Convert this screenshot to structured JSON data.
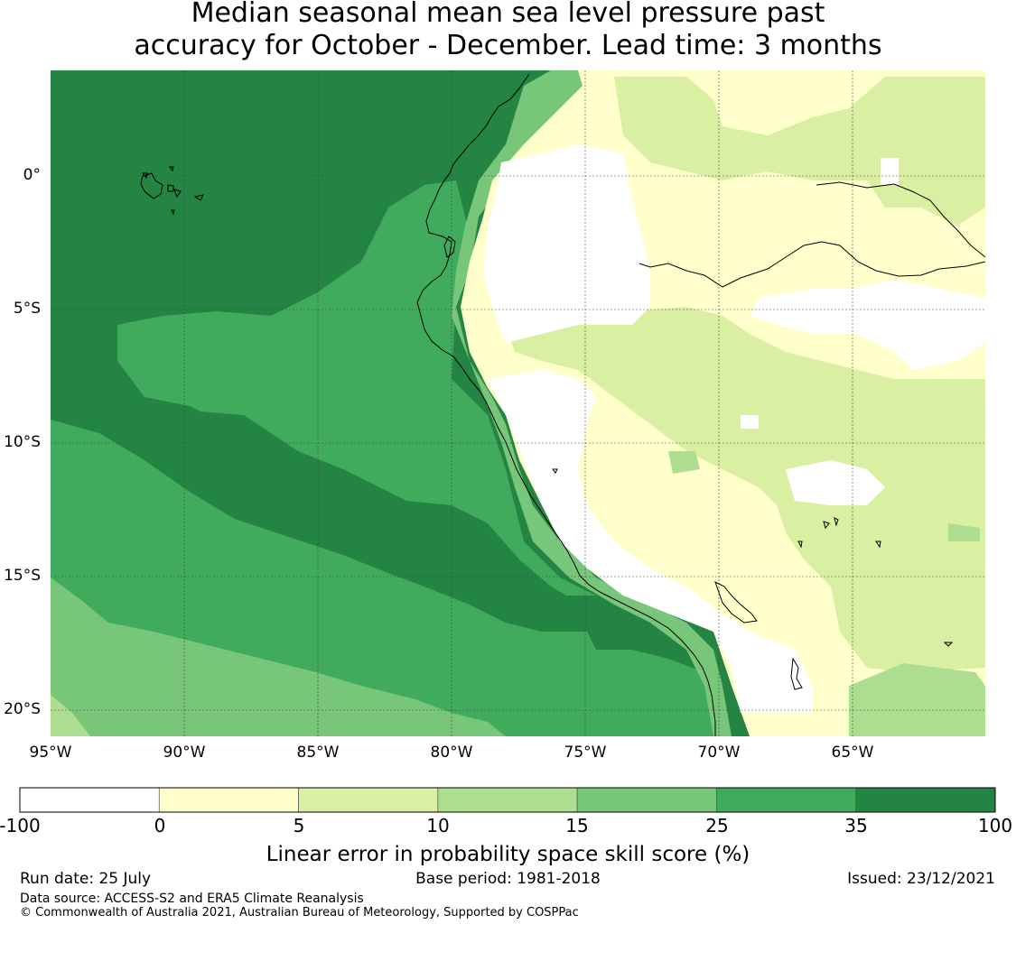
{
  "title": {
    "line1": "Median seasonal mean sea level pressure past",
    "line2": "accuracy for October - December. Lead time: 3 months"
  },
  "map": {
    "lat_labels": [
      "0°",
      "5°S",
      "10°S",
      "15°S",
      "20°S"
    ],
    "lon_labels": [
      "95°W",
      "90°W",
      "85°W",
      "80°W",
      "75°W",
      "70°W",
      "65°W"
    ],
    "lon_range": [
      -95,
      -60
    ],
    "lat_range": [
      -21,
      4
    ]
  },
  "colorbar": {
    "label": "Linear error in probability space skill score (%)",
    "ticks": [
      "-100",
      "0",
      "5",
      "10",
      "15",
      "25",
      "35",
      "100"
    ],
    "colors": [
      "#ffffff",
      "#ffffcc",
      "#d9f0a3",
      "#addd8e",
      "#78c679",
      "#41ab5d",
      "#238443"
    ]
  },
  "footer": {
    "run_date": "Run date: 25 July",
    "base_period": "Base period: 1981-2018",
    "issued": "Issued: 23/12/2021",
    "data_source": "Data source: ACCESS-S2 and ERA5 Climate Reanalysis",
    "copyright": "© Commonwealth of Australia 2021, Australian Bureau of Meteorology, Supported by COSPPac"
  }
}
